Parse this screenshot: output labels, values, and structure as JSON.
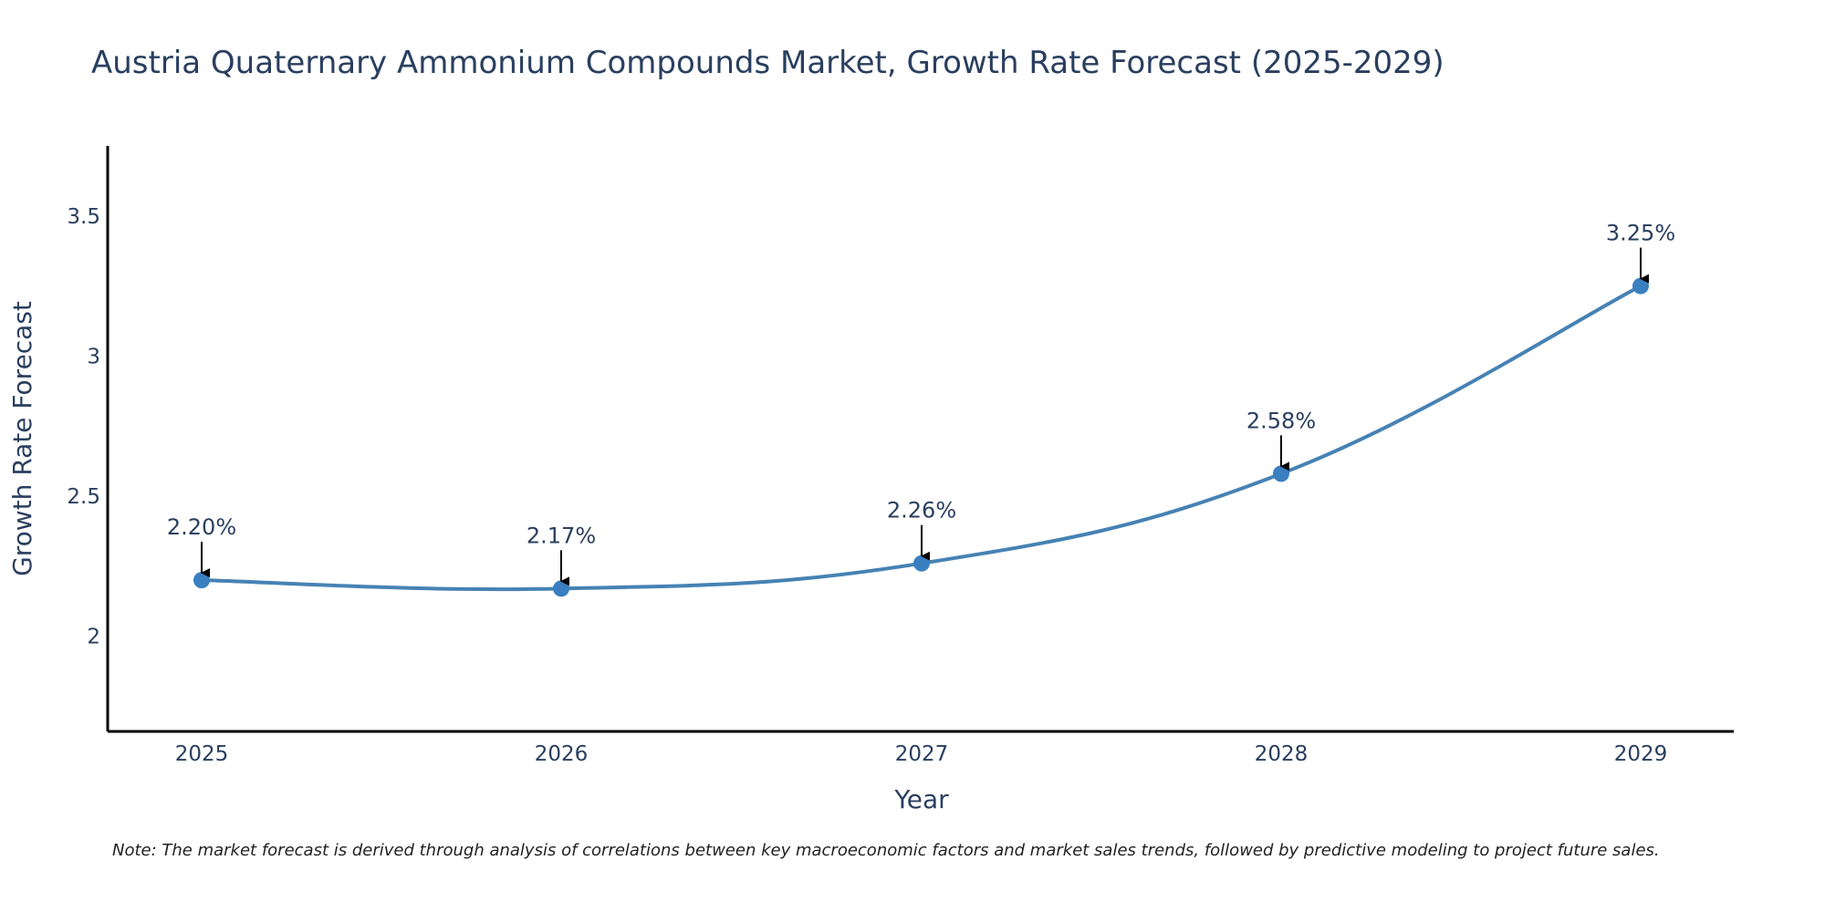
{
  "chart_data": {
    "type": "line",
    "title": "Austria Quaternary Ammonium Compounds Market, Growth Rate Forecast (2025-2029)",
    "xlabel": "Year",
    "ylabel": "Growth Rate Forecast",
    "x": [
      "2025",
      "2026",
      "2027",
      "2028",
      "2029"
    ],
    "series": [
      {
        "name": "Growth Rate Forecast",
        "values": [
          2.2,
          2.17,
          2.26,
          2.58,
          3.25
        ],
        "labels": [
          "2.20%",
          "2.17%",
          "2.26%",
          "2.58%",
          "3.25%"
        ]
      }
    ],
    "ylim": [
      1.66,
      3.75
    ],
    "yticks": [
      2,
      2.5,
      3,
      3.5
    ],
    "ytick_labels": [
      "2",
      "2.5",
      "3",
      "3.5"
    ],
    "grid": false,
    "line_shape": "spline",
    "colors": {
      "line": "#4682b4",
      "marker": "#3a7fc0",
      "axis": "#000000",
      "arrow": "#000000",
      "text": "#2a3f5f"
    },
    "note": "Note: The market forecast is derived through analysis of correlations between key macroeconomic factors and market sales trends, followed by predictive modeling to project future sales."
  }
}
